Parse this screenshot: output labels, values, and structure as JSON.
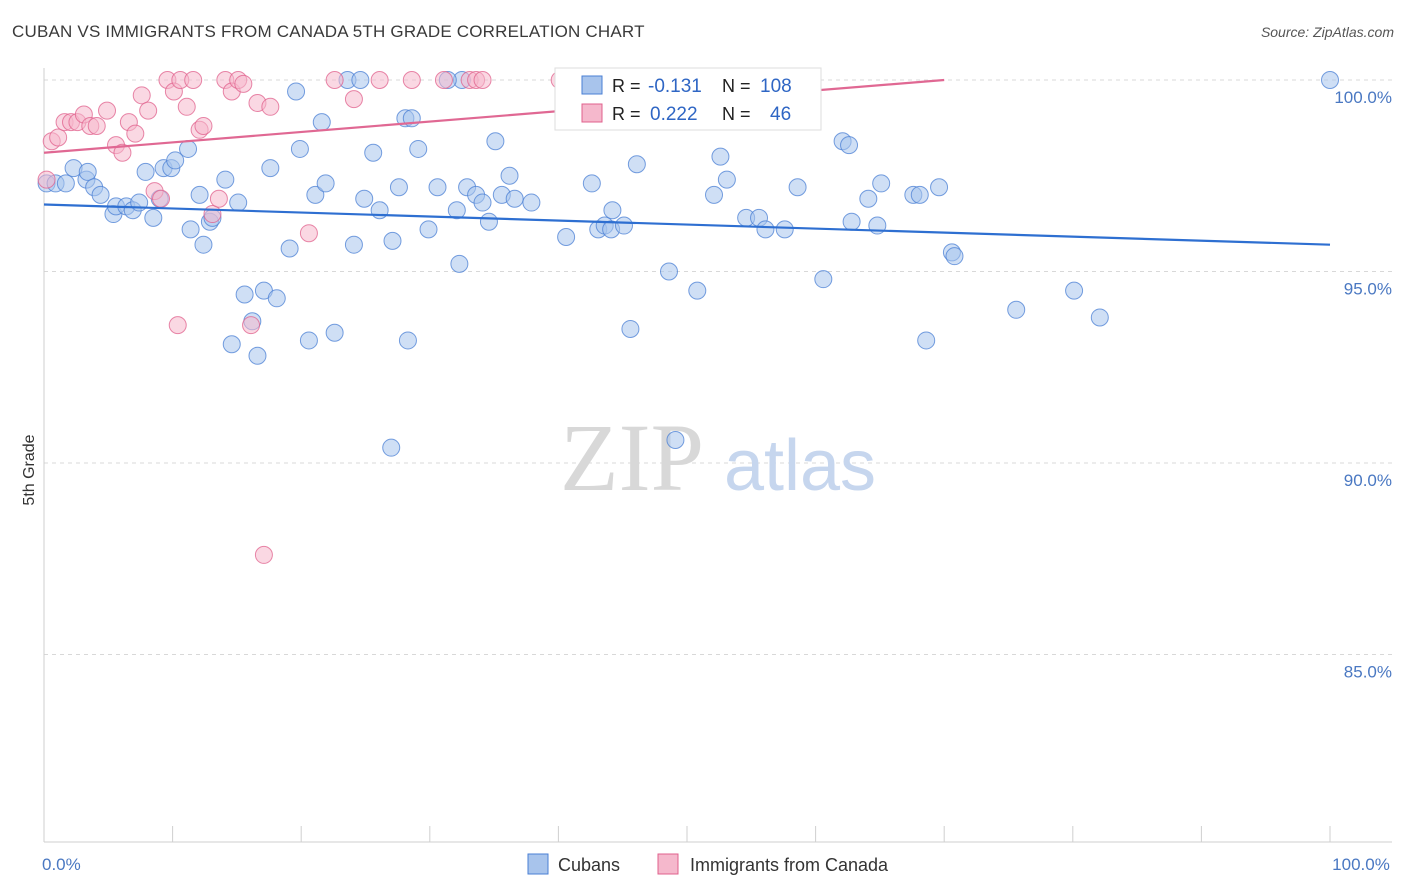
{
  "header": {
    "title": "CUBAN VS IMMIGRANTS FROM CANADA 5TH GRADE CORRELATION CHART",
    "source": "Source: ZipAtlas.com"
  },
  "watermark": {
    "zip": "ZIP",
    "atlas": "atlas"
  },
  "colors": {
    "blue": "#4a7fd4",
    "blue_fill": "#a8c4ec",
    "pink": "#e0608c",
    "pink_fill": "#f5b8cc",
    "grid": "#d8d8d8",
    "tick_text": "#4a78c2"
  },
  "chart_data": {
    "type": "scatter",
    "xlabel": "",
    "ylabel": "5th Grade",
    "xlim": [
      0,
      100
    ],
    "ylim": [
      80.5,
      100.8
    ],
    "x_tick_labels": [
      {
        "value": 0,
        "label": "0.0%"
      },
      {
        "value": 100,
        "label": "100.0%"
      }
    ],
    "y_ticks": [
      {
        "value": 100,
        "label": "100.0%"
      },
      {
        "value": 95,
        "label": "95.0%"
      },
      {
        "value": 90,
        "label": "90.0%"
      },
      {
        "value": 85,
        "label": "85.0%"
      }
    ],
    "legend": {
      "rows": [
        {
          "r_label": "R =",
          "r_value": "-0.131",
          "n_label": "N =",
          "n_value": "108"
        },
        {
          "r_label": "R =",
          "r_value": "0.222",
          "n_label": "N =",
          "n_value": "46"
        }
      ],
      "bottom": [
        "Cubans",
        "Immigrants from Canada"
      ]
    },
    "series": [
      {
        "name": "Cubans",
        "trend": {
          "x": [
            0,
            100
          ],
          "y": [
            96.75,
            95.7
          ]
        },
        "points": [
          [
            0.2,
            97.3
          ],
          [
            0.9,
            97.3
          ],
          [
            1.7,
            97.3
          ],
          [
            2.3,
            97.7
          ],
          [
            3.3,
            97.4
          ],
          [
            3.4,
            97.6
          ],
          [
            3.9,
            97.2
          ],
          [
            4.4,
            97.0
          ],
          [
            5.4,
            96.5
          ],
          [
            5.6,
            96.7
          ],
          [
            6.4,
            96.7
          ],
          [
            6.9,
            96.6
          ],
          [
            7.4,
            96.8
          ],
          [
            7.9,
            97.6
          ],
          [
            8.5,
            96.4
          ],
          [
            9.0,
            96.9
          ],
          [
            9.3,
            97.7
          ],
          [
            9.9,
            97.7
          ],
          [
            10.2,
            97.9
          ],
          [
            11.2,
            98.2
          ],
          [
            11.4,
            96.1
          ],
          [
            12.1,
            97.0
          ],
          [
            12.4,
            95.7
          ],
          [
            12.9,
            96.3
          ],
          [
            13.1,
            96.4
          ],
          [
            14.1,
            97.4
          ],
          [
            14.6,
            93.1
          ],
          [
            15.1,
            96.8
          ],
          [
            15.6,
            94.4
          ],
          [
            16.2,
            93.7
          ],
          [
            16.6,
            92.8
          ],
          [
            17.1,
            94.5
          ],
          [
            17.6,
            97.7
          ],
          [
            18.1,
            94.3
          ],
          [
            19.1,
            95.6
          ],
          [
            19.6,
            99.7
          ],
          [
            19.9,
            98.2
          ],
          [
            20.6,
            93.2
          ],
          [
            21.1,
            97.0
          ],
          [
            21.6,
            98.9
          ],
          [
            21.9,
            97.3
          ],
          [
            22.6,
            93.4
          ],
          [
            23.6,
            100.0
          ],
          [
            24.1,
            95.7
          ],
          [
            24.6,
            100.0
          ],
          [
            24.9,
            96.9
          ],
          [
            25.6,
            98.1
          ],
          [
            26.1,
            96.6
          ],
          [
            27.1,
            95.8
          ],
          [
            27.6,
            97.2
          ],
          [
            28.1,
            99.0
          ],
          [
            28.3,
            93.2
          ],
          [
            28.6,
            99.0
          ],
          [
            29.1,
            98.2
          ],
          [
            29.9,
            96.1
          ],
          [
            30.6,
            97.2
          ],
          [
            32.1,
            96.6
          ],
          [
            32.3,
            95.2
          ],
          [
            32.9,
            97.2
          ],
          [
            33.6,
            97.0
          ],
          [
            34.1,
            96.8
          ],
          [
            34.6,
            96.3
          ],
          [
            35.1,
            98.4
          ],
          [
            35.6,
            97.0
          ],
          [
            36.2,
            97.5
          ],
          [
            36.6,
            96.9
          ],
          [
            37.9,
            96.8
          ],
          [
            40.6,
            95.9
          ],
          [
            42.6,
            97.3
          ],
          [
            43.1,
            96.1
          ],
          [
            43.6,
            96.2
          ],
          [
            44.1,
            96.1
          ],
          [
            44.2,
            96.6
          ],
          [
            45.1,
            96.2
          ],
          [
            45.6,
            93.5
          ],
          [
            46.1,
            97.8
          ],
          [
            48.6,
            95.0
          ],
          [
            49.1,
            90.6
          ],
          [
            50.8,
            94.5
          ],
          [
            52.1,
            97.0
          ],
          [
            52.6,
            98.0
          ],
          [
            53.1,
            97.4
          ],
          [
            54.6,
            96.4
          ],
          [
            55.6,
            96.4
          ],
          [
            56.1,
            96.1
          ],
          [
            57.6,
            96.1
          ],
          [
            58.6,
            97.2
          ],
          [
            60.6,
            94.8
          ],
          [
            62.1,
            98.4
          ],
          [
            62.6,
            98.3
          ],
          [
            62.8,
            96.3
          ],
          [
            64.1,
            96.9
          ],
          [
            64.8,
            96.2
          ],
          [
            65.1,
            97.3
          ],
          [
            67.6,
            97.0
          ],
          [
            68.1,
            97.0
          ],
          [
            68.6,
            93.2
          ],
          [
            69.6,
            97.2
          ],
          [
            70.6,
            95.5
          ],
          [
            70.8,
            95.4
          ],
          [
            75.6,
            94.0
          ],
          [
            80.1,
            94.5
          ],
          [
            82.1,
            93.8
          ],
          [
            100.0,
            100.0
          ],
          [
            32.5,
            100.0
          ],
          [
            45.8,
            100.0
          ],
          [
            31.4,
            100.0
          ],
          [
            27.0,
            90.4
          ]
        ]
      },
      {
        "name": "Immigrants from Canada",
        "trend": {
          "x": [
            0,
            70
          ],
          "y": [
            98.1,
            100.0
          ]
        },
        "points": [
          [
            0.6,
            98.4
          ],
          [
            1.1,
            98.5
          ],
          [
            1.6,
            98.9
          ],
          [
            2.1,
            98.9
          ],
          [
            2.6,
            98.9
          ],
          [
            3.1,
            99.1
          ],
          [
            3.6,
            98.8
          ],
          [
            4.1,
            98.8
          ],
          [
            4.9,
            99.2
          ],
          [
            5.6,
            98.3
          ],
          [
            6.1,
            98.1
          ],
          [
            6.6,
            98.9
          ],
          [
            7.1,
            98.6
          ],
          [
            7.6,
            99.6
          ],
          [
            8.1,
            99.2
          ],
          [
            8.6,
            97.1
          ],
          [
            9.1,
            96.9
          ],
          [
            9.6,
            100.0
          ],
          [
            10.1,
            99.7
          ],
          [
            10.4,
            93.6
          ],
          [
            10.6,
            100.0
          ],
          [
            11.1,
            99.3
          ],
          [
            11.6,
            100.0
          ],
          [
            12.1,
            98.7
          ],
          [
            12.4,
            98.8
          ],
          [
            13.1,
            96.5
          ],
          [
            13.6,
            96.9
          ],
          [
            14.1,
            100.0
          ],
          [
            14.6,
            99.7
          ],
          [
            15.1,
            100.0
          ],
          [
            15.5,
            99.9
          ],
          [
            16.1,
            93.6
          ],
          [
            16.6,
            99.4
          ],
          [
            17.1,
            87.6
          ],
          [
            17.6,
            99.3
          ],
          [
            20.6,
            96.0
          ],
          [
            22.6,
            100.0
          ],
          [
            24.1,
            99.5
          ],
          [
            26.1,
            100.0
          ],
          [
            28.6,
            100.0
          ],
          [
            31.1,
            100.0
          ],
          [
            33.1,
            100.0
          ],
          [
            33.6,
            100.0
          ],
          [
            34.1,
            100.0
          ],
          [
            40.1,
            100.0
          ],
          [
            0.2,
            97.4
          ]
        ]
      }
    ]
  }
}
